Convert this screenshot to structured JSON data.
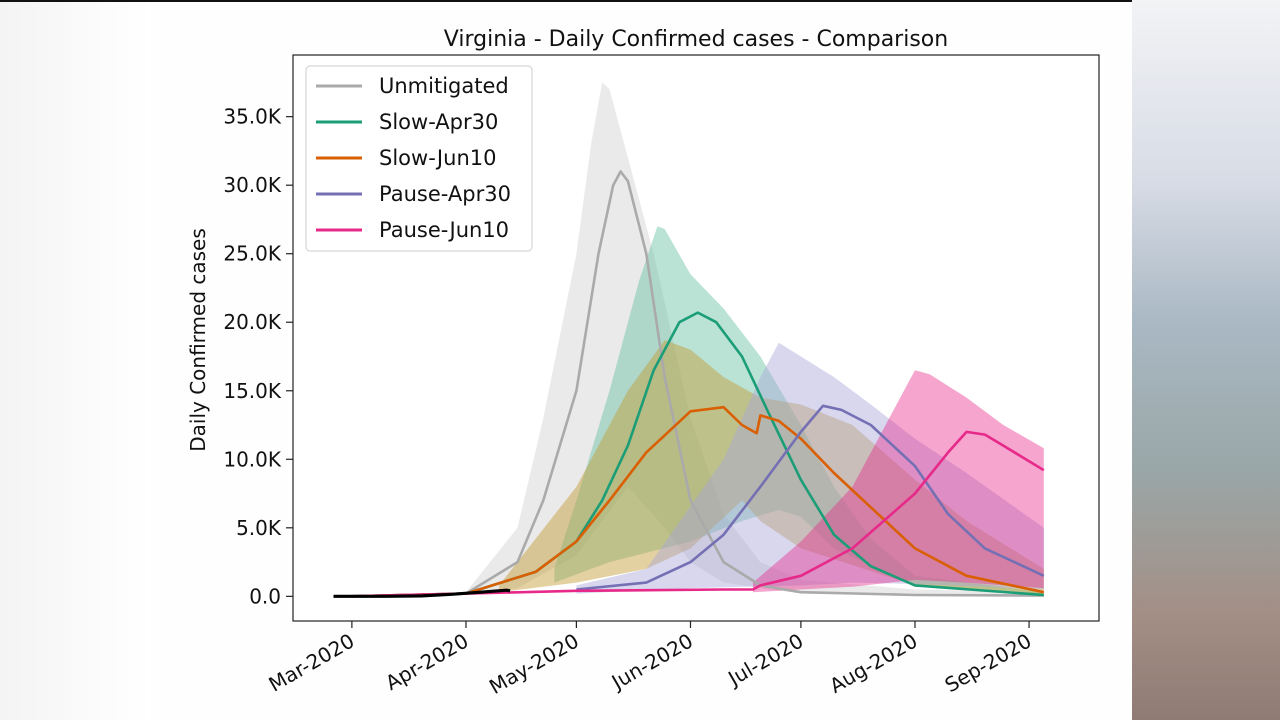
{
  "chart_data": {
    "type": "line",
    "title": "Virginia - Daily Confirmed cases - Comparison",
    "xlabel": "",
    "ylabel": "Daily Confirmed cases",
    "ylim": [
      -1800,
      39500
    ],
    "xlim": [
      "2020-02-14",
      "2020-09-20"
    ],
    "yticks": [
      {
        "value": 0,
        "label": "0.0"
      },
      {
        "value": 5000,
        "label": "5.0K"
      },
      {
        "value": 10000,
        "label": "10.0K"
      },
      {
        "value": 15000,
        "label": "15.0K"
      },
      {
        "value": 20000,
        "label": "20.0K"
      },
      {
        "value": 25000,
        "label": "25.0K"
      },
      {
        "value": 30000,
        "label": "30.0K"
      },
      {
        "value": 35000,
        "label": "35.0K"
      }
    ],
    "xticks": [
      {
        "date": "2020-03-01",
        "label": "Mar-2020"
      },
      {
        "date": "2020-04-01",
        "label": "Apr-2020"
      },
      {
        "date": "2020-05-01",
        "label": "May-2020"
      },
      {
        "date": "2020-06-01",
        "label": "Jun-2020"
      },
      {
        "date": "2020-07-01",
        "label": "Jul-2020"
      },
      {
        "date": "2020-08-01",
        "label": "Aug-2020"
      },
      {
        "date": "2020-09-01",
        "label": "Sep-2020"
      }
    ],
    "legend_position": "top-left",
    "grid": false,
    "series": [
      {
        "name": "Unmitigated",
        "color": "#aaaaaa",
        "band_color": "#d9d9d9",
        "band_opacity": 0.55,
        "values": [
          [
            "2020-03-01",
            0
          ],
          [
            "2020-04-01",
            200
          ],
          [
            "2020-04-15",
            2500
          ],
          [
            "2020-04-22",
            7000
          ],
          [
            "2020-05-01",
            15000
          ],
          [
            "2020-05-07",
            25000
          ],
          [
            "2020-05-11",
            30000
          ],
          [
            "2020-05-13",
            31000
          ],
          [
            "2020-05-15",
            30300
          ],
          [
            "2020-05-20",
            25000
          ],
          [
            "2020-05-25",
            16000
          ],
          [
            "2020-06-01",
            7000
          ],
          [
            "2020-06-10",
            2500
          ],
          [
            "2020-06-20",
            800
          ],
          [
            "2020-07-01",
            300
          ],
          [
            "2020-08-01",
            100
          ],
          [
            "2020-09-05",
            50
          ]
        ],
        "upper": [
          [
            "2020-03-01",
            0
          ],
          [
            "2020-04-01",
            300
          ],
          [
            "2020-04-15",
            5000
          ],
          [
            "2020-04-22",
            13000
          ],
          [
            "2020-05-01",
            25000
          ],
          [
            "2020-05-05",
            33000
          ],
          [
            "2020-05-08",
            37500
          ],
          [
            "2020-05-10",
            37000
          ],
          [
            "2020-05-15",
            32000
          ],
          [
            "2020-05-22",
            25000
          ],
          [
            "2020-06-01",
            13000
          ],
          [
            "2020-06-10",
            6000
          ],
          [
            "2020-06-20",
            2500
          ],
          [
            "2020-07-01",
            1200
          ],
          [
            "2020-08-01",
            500
          ],
          [
            "2020-09-05",
            300
          ]
        ],
        "lower": [
          [
            "2020-03-01",
            0
          ],
          [
            "2020-04-01",
            100
          ],
          [
            "2020-04-15",
            600
          ],
          [
            "2020-05-01",
            3000
          ],
          [
            "2020-05-15",
            8000
          ],
          [
            "2020-05-25",
            5000
          ],
          [
            "2020-06-01",
            2500
          ],
          [
            "2020-06-10",
            1000
          ],
          [
            "2020-07-01",
            200
          ],
          [
            "2020-09-05",
            0
          ]
        ]
      },
      {
        "name": "Slow-Apr30",
        "color": "#1b9e77",
        "band_color": "#66c2a5",
        "band_opacity": 0.45,
        "values": [
          [
            "2020-03-01",
            0
          ],
          [
            "2020-04-01",
            200
          ],
          [
            "2020-04-20",
            1800
          ],
          [
            "2020-05-01",
            4000
          ],
          [
            "2020-05-08",
            7000
          ],
          [
            "2020-05-15",
            11000
          ],
          [
            "2020-05-22",
            16500
          ],
          [
            "2020-05-29",
            20000
          ],
          [
            "2020-06-03",
            20700
          ],
          [
            "2020-06-08",
            20000
          ],
          [
            "2020-06-15",
            17500
          ],
          [
            "2020-06-22",
            13500
          ],
          [
            "2020-07-01",
            8500
          ],
          [
            "2020-07-10",
            4500
          ],
          [
            "2020-07-20",
            2200
          ],
          [
            "2020-08-01",
            800
          ],
          [
            "2020-09-05",
            100
          ]
        ],
        "upper": [
          [
            "2020-04-25",
            2000
          ],
          [
            "2020-05-01",
            7000
          ],
          [
            "2020-05-10",
            15000
          ],
          [
            "2020-05-18",
            23000
          ],
          [
            "2020-05-23",
            27000
          ],
          [
            "2020-05-25",
            26800
          ],
          [
            "2020-06-01",
            23500
          ],
          [
            "2020-06-10",
            21000
          ],
          [
            "2020-06-20",
            17500
          ],
          [
            "2020-07-01",
            12500
          ],
          [
            "2020-07-10",
            8000
          ],
          [
            "2020-07-20",
            4200
          ],
          [
            "2020-08-01",
            1500
          ],
          [
            "2020-09-05",
            300
          ]
        ],
        "lower": [
          [
            "2020-04-25",
            1000
          ],
          [
            "2020-05-10",
            2500
          ],
          [
            "2020-06-01",
            4000
          ],
          [
            "2020-06-15",
            5500
          ],
          [
            "2020-06-25",
            6300
          ],
          [
            "2020-07-01",
            5800
          ],
          [
            "2020-07-10",
            3500
          ],
          [
            "2020-08-01",
            800
          ],
          [
            "2020-09-05",
            100
          ]
        ]
      },
      {
        "name": "Slow-Jun10",
        "color": "#d95f02",
        "band_color": "#c49a2f",
        "band_opacity": 0.45,
        "values": [
          [
            "2020-03-01",
            0
          ],
          [
            "2020-04-01",
            200
          ],
          [
            "2020-04-20",
            1800
          ],
          [
            "2020-05-01",
            4000
          ],
          [
            "2020-05-10",
            7000
          ],
          [
            "2020-05-20",
            10500
          ],
          [
            "2020-06-01",
            13500
          ],
          [
            "2020-06-10",
            13800
          ],
          [
            "2020-06-15",
            12500
          ],
          [
            "2020-06-19",
            11900
          ],
          [
            "2020-06-20",
            13200
          ],
          [
            "2020-06-25",
            12800
          ],
          [
            "2020-07-01",
            11500
          ],
          [
            "2020-07-10",
            9000
          ],
          [
            "2020-07-20",
            6500
          ],
          [
            "2020-08-01",
            3500
          ],
          [
            "2020-08-15",
            1500
          ],
          [
            "2020-09-05",
            300
          ]
        ],
        "upper": [
          [
            "2020-04-10",
            800
          ],
          [
            "2020-05-01",
            8000
          ],
          [
            "2020-05-15",
            15000
          ],
          [
            "2020-05-25",
            18700
          ],
          [
            "2020-06-01",
            18000
          ],
          [
            "2020-06-10",
            16000
          ],
          [
            "2020-06-20",
            14500
          ],
          [
            "2020-07-01",
            14000
          ],
          [
            "2020-07-15",
            12500
          ],
          [
            "2020-08-01",
            8500
          ],
          [
            "2020-08-15",
            5500
          ],
          [
            "2020-09-05",
            2000
          ]
        ],
        "lower": [
          [
            "2020-04-10",
            300
          ],
          [
            "2020-05-01",
            1000
          ],
          [
            "2020-05-20",
            2000
          ],
          [
            "2020-06-01",
            3500
          ],
          [
            "2020-06-15",
            7000
          ],
          [
            "2020-06-20",
            5500
          ],
          [
            "2020-07-01",
            3500
          ],
          [
            "2020-08-01",
            800
          ],
          [
            "2020-09-05",
            100
          ]
        ]
      },
      {
        "name": "Pause-Apr30",
        "color": "#7570b3",
        "band_color": "#a9a6d9",
        "band_opacity": 0.45,
        "values": [
          [
            "2020-05-01",
            500
          ],
          [
            "2020-05-20",
            1000
          ],
          [
            "2020-06-01",
            2500
          ],
          [
            "2020-06-10",
            4500
          ],
          [
            "2020-06-20",
            8000
          ],
          [
            "2020-07-01",
            12000
          ],
          [
            "2020-07-07",
            13900
          ],
          [
            "2020-07-12",
            13600
          ],
          [
            "2020-07-20",
            12500
          ],
          [
            "2020-08-01",
            9500
          ],
          [
            "2020-08-10",
            6000
          ],
          [
            "2020-08-20",
            3500
          ],
          [
            "2020-09-05",
            1500
          ]
        ],
        "upper": [
          [
            "2020-05-01",
            800
          ],
          [
            "2020-05-20",
            2000
          ],
          [
            "2020-06-10",
            10000
          ],
          [
            "2020-06-20",
            16000
          ],
          [
            "2020-06-25",
            18500
          ],
          [
            "2020-07-01",
            17500
          ],
          [
            "2020-07-10",
            16000
          ],
          [
            "2020-07-20",
            14000
          ],
          [
            "2020-08-01",
            11500
          ],
          [
            "2020-08-15",
            9000
          ],
          [
            "2020-09-05",
            5000
          ]
        ],
        "lower": [
          [
            "2020-05-01",
            200
          ],
          [
            "2020-06-01",
            600
          ],
          [
            "2020-07-01",
            800
          ],
          [
            "2020-07-15",
            1000
          ],
          [
            "2020-08-01",
            900
          ],
          [
            "2020-09-05",
            500
          ]
        ]
      },
      {
        "name": "Pause-Jun10",
        "color": "#e7298a",
        "band_color": "#e7298a",
        "band_opacity": 0.42,
        "values": [
          [
            "2020-03-01",
            0
          ],
          [
            "2020-04-01",
            200
          ],
          [
            "2020-05-01",
            400
          ],
          [
            "2020-06-10",
            500
          ],
          [
            "2020-06-18",
            500
          ],
          [
            "2020-06-20",
            800
          ],
          [
            "2020-07-01",
            1500
          ],
          [
            "2020-07-15",
            3500
          ],
          [
            "2020-08-01",
            7500
          ],
          [
            "2020-08-10",
            10500
          ],
          [
            "2020-08-15",
            12000
          ],
          [
            "2020-08-20",
            11800
          ],
          [
            "2020-08-25",
            11000
          ],
          [
            "2020-09-05",
            9200
          ]
        ],
        "upper": [
          [
            "2020-06-18",
            1000
          ],
          [
            "2020-07-01",
            4000
          ],
          [
            "2020-07-15",
            8000
          ],
          [
            "2020-07-25",
            13000
          ],
          [
            "2020-08-01",
            16500
          ],
          [
            "2020-08-05",
            16200
          ],
          [
            "2020-08-15",
            14500
          ],
          [
            "2020-08-25",
            12500
          ],
          [
            "2020-09-05",
            10800
          ]
        ],
        "lower": [
          [
            "2020-06-18",
            300
          ],
          [
            "2020-07-01",
            500
          ],
          [
            "2020-07-15",
            700
          ],
          [
            "2020-08-01",
            1200
          ],
          [
            "2020-08-15",
            1000
          ],
          [
            "2020-09-05",
            600
          ]
        ]
      }
    ],
    "observed": {
      "color": "#000000",
      "values": [
        [
          "2020-02-25",
          0
        ],
        [
          "2020-03-10",
          0
        ],
        [
          "2020-03-20",
          30
        ],
        [
          "2020-03-28",
          150
        ],
        [
          "2020-04-05",
          300
        ],
        [
          "2020-04-12",
          450
        ],
        [
          "2020-04-13",
          400
        ]
      ]
    }
  }
}
